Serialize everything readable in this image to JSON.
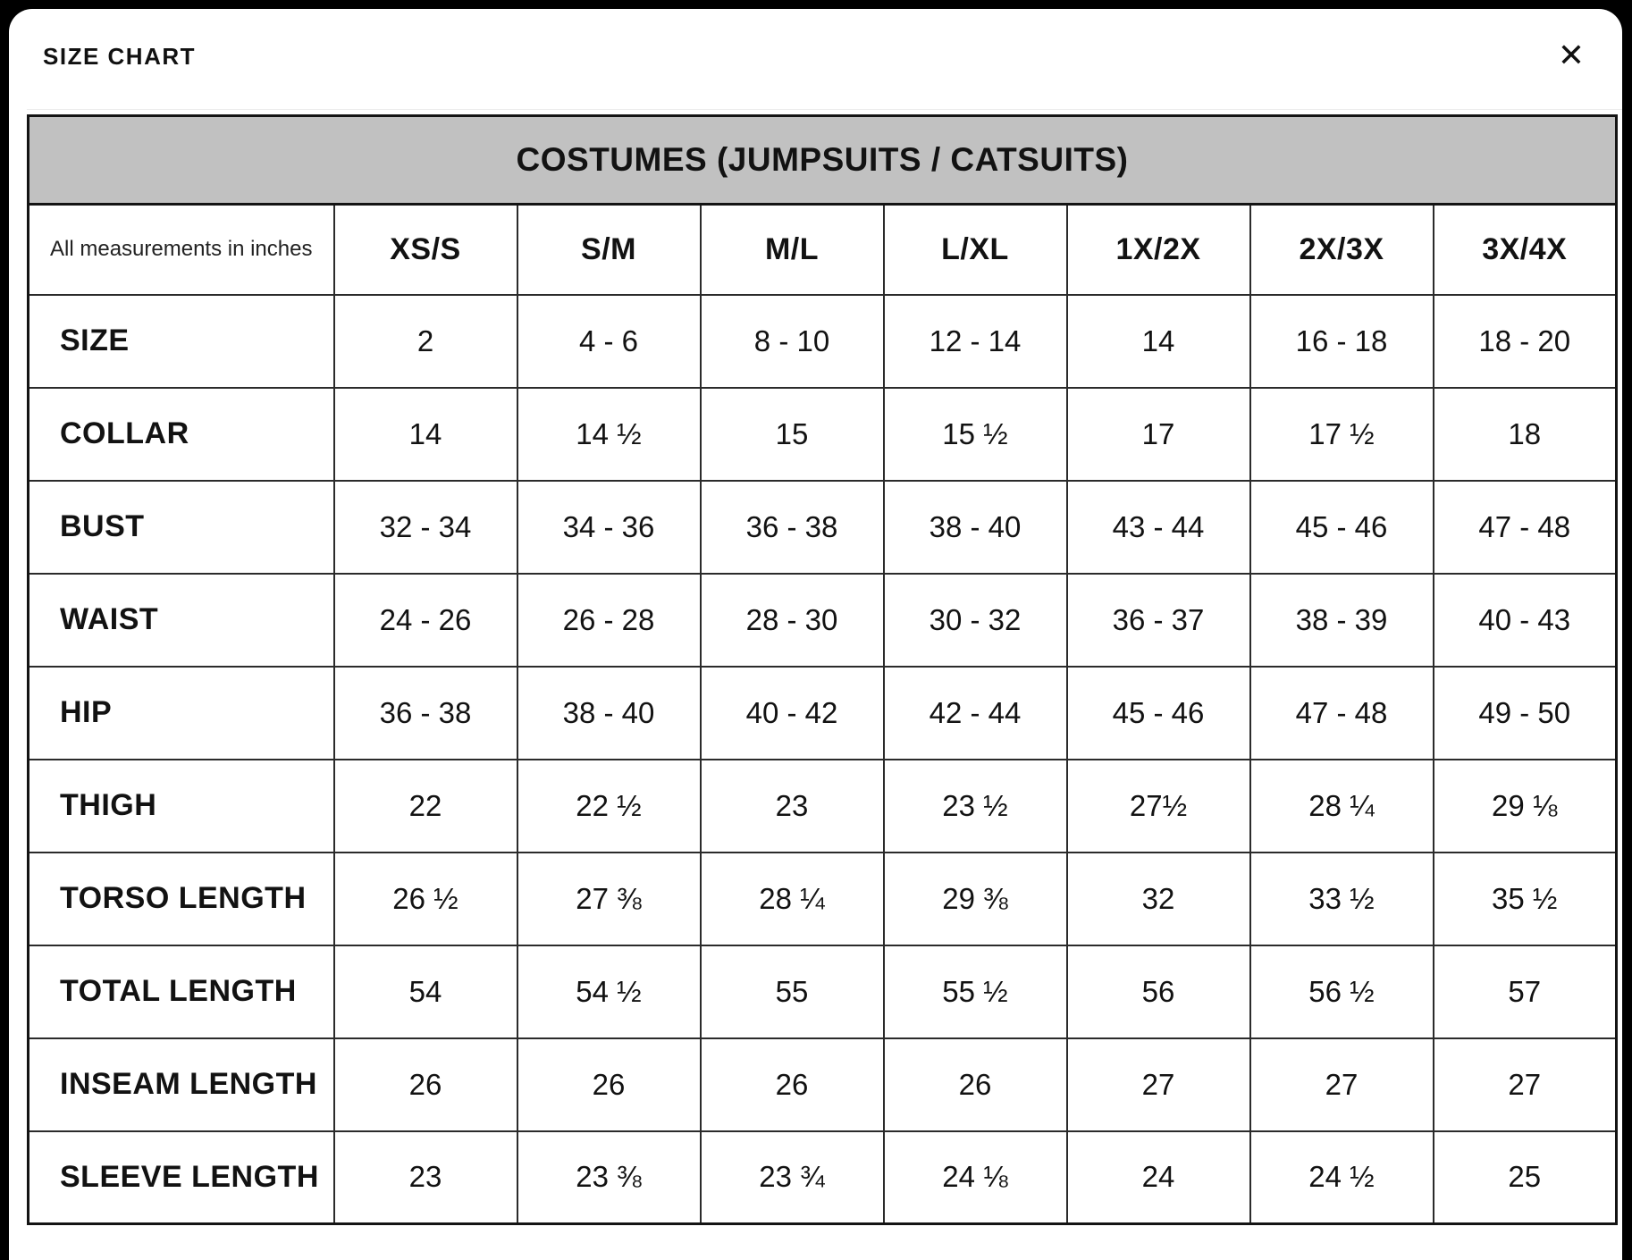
{
  "modal": {
    "title": "SIZE CHART",
    "close_icon": "✕"
  },
  "table": {
    "caption": "COSTUMES (JUMPSUITS / CATSUITS)",
    "corner_note": "All measurements in inches",
    "header_bg": "#c1c1c1",
    "border_color": "#141414",
    "size_headers": [
      "XS/S",
      "S/M",
      "M/L",
      "L/XL",
      "1X/2X",
      "2X/3X",
      "3X/4X"
    ],
    "rows": [
      {
        "label": "SIZE",
        "values": [
          "2",
          "4 - 6",
          "8 - 10",
          "12 - 14",
          "14",
          "16 - 18",
          "18 - 20"
        ]
      },
      {
        "label": "COLLAR",
        "values": [
          "14",
          "14 ½",
          "15",
          "15 ½",
          "17",
          "17 ½",
          "18"
        ]
      },
      {
        "label": "BUST",
        "values": [
          "32 - 34",
          "34 - 36",
          "36 - 38",
          "38 - 40",
          "43 - 44",
          "45 - 46",
          "47 - 48"
        ]
      },
      {
        "label": "WAIST",
        "values": [
          "24 - 26",
          "26 - 28",
          "28 - 30",
          "30 - 32",
          "36 - 37",
          "38 - 39",
          "40 - 43"
        ]
      },
      {
        "label": "HIP",
        "values": [
          "36 - 38",
          "38 - 40",
          "40 - 42",
          "42 - 44",
          "45 - 46",
          "47 - 48",
          "49 - 50"
        ]
      },
      {
        "label": "THIGH",
        "values": [
          "22",
          "22 ½",
          "23",
          "23 ½",
          "27½",
          "28 ¼",
          "29 ⅛"
        ]
      },
      {
        "label": "TORSO LENGTH",
        "values": [
          "26 ½",
          "27 ⅜",
          "28 ¼",
          "29 ⅜",
          "32",
          "33 ½",
          "35 ½"
        ]
      },
      {
        "label": "TOTAL LENGTH",
        "values": [
          "54",
          "54 ½",
          "55",
          "55 ½",
          "56",
          "56 ½",
          "57"
        ]
      },
      {
        "label": "INSEAM LENGTH",
        "values": [
          "26",
          "26",
          "26",
          "26",
          "27",
          "27",
          "27"
        ]
      },
      {
        "label": "SLEEVE LENGTH",
        "values": [
          "23",
          "23 ⅜",
          "23 ¾",
          "24 ⅛",
          "24",
          "24 ½",
          "25"
        ]
      }
    ]
  }
}
